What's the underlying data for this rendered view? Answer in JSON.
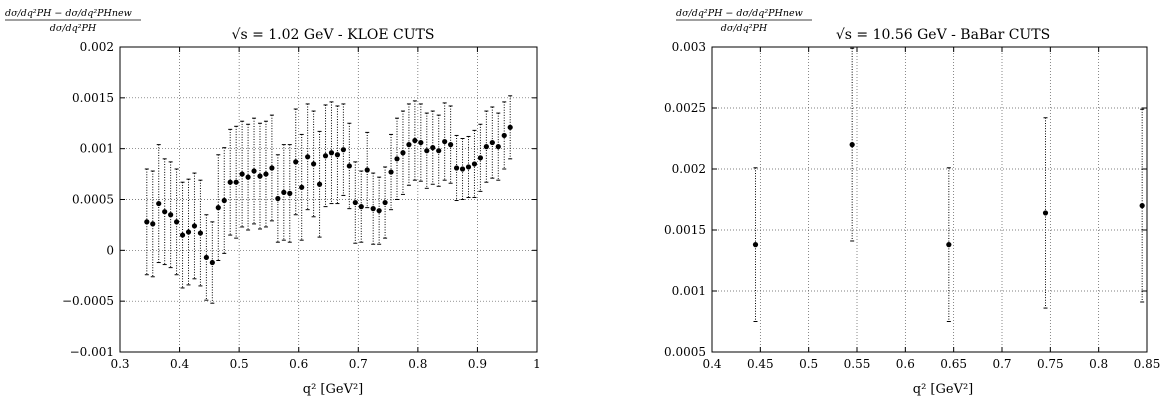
{
  "chart_data": [
    {
      "type": "scatter",
      "title": "√s = 1.02 GeV - KLOE CUTS",
      "title_prefix": "√s",
      "title_rest": " = 1.02 GeV - KLOE CUTS",
      "ylabel_num": "dσ/dq²PH − dσ/dq²PHnew",
      "ylabel_den": "dσ/dq²PH",
      "xlabel": "q² [GeV²]",
      "xlim": [
        0.3,
        1.0
      ],
      "ylim": [
        -0.001,
        0.002
      ],
      "xticks": [
        0.3,
        0.4,
        0.5,
        0.6,
        0.7,
        0.8,
        0.9,
        1.0
      ],
      "xtick_labels": [
        "0.3",
        "0.4",
        "0.5",
        "0.6",
        "0.7",
        "0.8",
        "0.9",
        "1"
      ],
      "yticks": [
        -0.001,
        -0.0005,
        0,
        0.0005,
        0.001,
        0.0015,
        0.002
      ],
      "ytick_labels": [
        "−0.001",
        "−0.0005",
        "0",
        "0.0005",
        "0.001",
        "0.0015",
        "0.002"
      ],
      "grid": true,
      "error_bars": true,
      "x": [
        0.345,
        0.355,
        0.365,
        0.375,
        0.385,
        0.395,
        0.405,
        0.415,
        0.425,
        0.435,
        0.445,
        0.455,
        0.465,
        0.475,
        0.485,
        0.495,
        0.505,
        0.515,
        0.525,
        0.535,
        0.545,
        0.555,
        0.565,
        0.575,
        0.585,
        0.595,
        0.605,
        0.615,
        0.625,
        0.635,
        0.645,
        0.655,
        0.665,
        0.675,
        0.685,
        0.695,
        0.705,
        0.715,
        0.725,
        0.735,
        0.745,
        0.755,
        0.765,
        0.775,
        0.785,
        0.795,
        0.805,
        0.815,
        0.825,
        0.835,
        0.845,
        0.855,
        0.865,
        0.875,
        0.885,
        0.895,
        0.905,
        0.915,
        0.925,
        0.935,
        0.945,
        0.955
      ],
      "y": [
        0.00028,
        0.00026,
        0.00046,
        0.00038,
        0.00035,
        0.00028,
        0.00015,
        0.00018,
        0.00024,
        0.00017,
        -7e-05,
        -0.00012,
        0.00042,
        0.00049,
        0.00067,
        0.00067,
        0.00075,
        0.00072,
        0.00078,
        0.00073,
        0.00075,
        0.00081,
        0.00051,
        0.00057,
        0.00056,
        0.00087,
        0.00062,
        0.00092,
        0.00085,
        0.00065,
        0.00093,
        0.00096,
        0.00094,
        0.00099,
        0.00083,
        0.00047,
        0.00043,
        0.00079,
        0.00041,
        0.00039,
        0.00047,
        0.00077,
        0.0009,
        0.00096,
        0.00104,
        0.00108,
        0.00106,
        0.00098,
        0.00101,
        0.00098,
        0.00107,
        0.00104,
        0.00081,
        0.0008,
        0.00082,
        0.00085,
        0.00091,
        0.00102,
        0.00106,
        0.00102,
        0.00113,
        0.00121
      ],
      "err": [
        0.00052,
        0.00052,
        0.00058,
        0.00052,
        0.00052,
        0.00052,
        0.00052,
        0.00052,
        0.00052,
        0.00052,
        0.00042,
        0.0004,
        0.00052,
        0.00052,
        0.00052,
        0.00055,
        0.00052,
        0.00052,
        0.00052,
        0.00052,
        0.00052,
        0.00052,
        0.00043,
        0.00047,
        0.00048,
        0.00052,
        0.00052,
        0.00052,
        0.00052,
        0.00052,
        0.0005,
        0.0005,
        0.00048,
        0.00045,
        0.00042,
        0.0004,
        0.00035,
        0.00037,
        0.00035,
        0.00033,
        0.00035,
        0.00037,
        0.0004,
        0.00041,
        0.0004,
        0.00039,
        0.00038,
        0.00037,
        0.00036,
        0.00035,
        0.00038,
        0.00038,
        0.00032,
        0.0003,
        0.0003,
        0.00033,
        0.00033,
        0.00035,
        0.00035,
        0.00033,
        0.00033,
        0.00031
      ]
    },
    {
      "type": "scatter",
      "title": "√s = 10.56 GeV - BaBar CUTS",
      "title_prefix": "√s",
      "title_rest": " = 10.56 GeV - BaBar CUTS",
      "ylabel_num": "dσ/dq²PH − dσ/dq²PHnew",
      "ylabel_den": "dσ/dq²PH",
      "xlabel": "q² [GeV²]",
      "xlim": [
        0.4,
        0.85
      ],
      "ylim": [
        0.0005,
        0.003
      ],
      "xticks": [
        0.4,
        0.45,
        0.5,
        0.55,
        0.6,
        0.65,
        0.7,
        0.75,
        0.8,
        0.85
      ],
      "xtick_labels": [
        "0.4",
        "0.45",
        "0.5",
        "0.55",
        "0.6",
        "0.65",
        "0.7",
        "0.75",
        "0.8",
        "0.85"
      ],
      "yticks": [
        0.0005,
        0.001,
        0.0015,
        0.002,
        0.0025,
        0.003
      ],
      "ytick_labels": [
        "0.0005",
        "0.001",
        "0.0015",
        "0.002",
        "0.0025",
        "0.003"
      ],
      "grid": true,
      "error_bars": true,
      "x": [
        0.445,
        0.545,
        0.645,
        0.745,
        0.845
      ],
      "y": [
        0.00138,
        0.0022,
        0.00138,
        0.00164,
        0.0017
      ],
      "err": [
        0.00063,
        0.00079,
        0.00063,
        0.00078,
        0.00079
      ]
    }
  ]
}
